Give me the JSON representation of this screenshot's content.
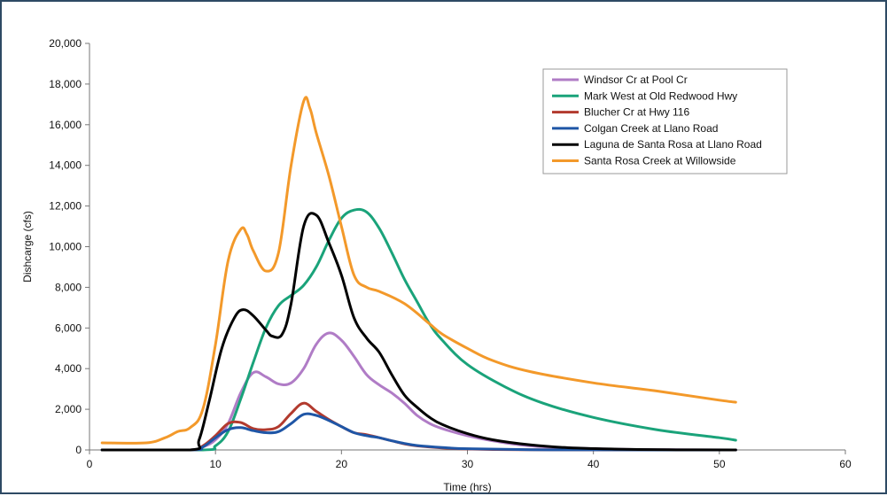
{
  "chart_data": {
    "type": "line",
    "title": "",
    "xlabel": "Time (hrs)",
    "ylabel": "Dishcarge (cfs)",
    "xlim": [
      0,
      60
    ],
    "ylim": [
      0,
      20000
    ],
    "x_ticks": [
      "0",
      "10",
      "20",
      "30",
      "40",
      "50",
      "60"
    ],
    "y_ticks": [
      "0",
      "2,000",
      "4,000",
      "6,000",
      "8,000",
      "10,000",
      "12,000",
      "14,000",
      "16,000",
      "18,000",
      "20,000"
    ],
    "grid": false,
    "legend_position": "top-right",
    "series": [
      {
        "name": "Windsor Cr at Pool Cr",
        "color": "#b07cc6",
        "points": [
          [
            1,
            0
          ],
          [
            8,
            0
          ],
          [
            9,
            150
          ],
          [
            10,
            500
          ],
          [
            11,
            1300
          ],
          [
            12,
            2800
          ],
          [
            13,
            3800
          ],
          [
            14,
            3600
          ],
          [
            15,
            3250
          ],
          [
            16,
            3300
          ],
          [
            17,
            4000
          ],
          [
            18,
            5200
          ],
          [
            19,
            5750
          ],
          [
            20,
            5400
          ],
          [
            21,
            4600
          ],
          [
            22,
            3700
          ],
          [
            23,
            3200
          ],
          [
            24,
            2800
          ],
          [
            25,
            2300
          ],
          [
            26,
            1700
          ],
          [
            27,
            1300
          ],
          [
            28,
            1050
          ],
          [
            30,
            700
          ],
          [
            32,
            450
          ],
          [
            35,
            200
          ],
          [
            40,
            60
          ],
          [
            45,
            15
          ],
          [
            51.3,
            0
          ]
        ]
      },
      {
        "name": "Mark West at Old Redwood Hwy",
        "color": "#1aa37a",
        "points": [
          [
            1,
            0
          ],
          [
            9,
            0
          ],
          [
            10,
            200
          ],
          [
            11,
            900
          ],
          [
            12,
            2500
          ],
          [
            13,
            4300
          ],
          [
            14,
            6000
          ],
          [
            15,
            7100
          ],
          [
            16,
            7600
          ],
          [
            17,
            8100
          ],
          [
            18,
            9000
          ],
          [
            19,
            10300
          ],
          [
            20,
            11400
          ],
          [
            21,
            11800
          ],
          [
            22,
            11700
          ],
          [
            23,
            10900
          ],
          [
            24,
            9700
          ],
          [
            25,
            8400
          ],
          [
            26,
            7300
          ],
          [
            27,
            6200
          ],
          [
            28,
            5400
          ],
          [
            30,
            4200
          ],
          [
            33,
            3100
          ],
          [
            36,
            2300
          ],
          [
            40,
            1600
          ],
          [
            45,
            1000
          ],
          [
            50,
            600
          ],
          [
            51.3,
            480
          ]
        ]
      },
      {
        "name": "Blucher Cr at Hwy 116",
        "color": "#b23a2e",
        "points": [
          [
            1,
            0
          ],
          [
            8,
            0
          ],
          [
            9,
            200
          ],
          [
            10,
            700
          ],
          [
            11,
            1300
          ],
          [
            12,
            1350
          ],
          [
            13,
            1050
          ],
          [
            14,
            1000
          ],
          [
            15,
            1150
          ],
          [
            16,
            1800
          ],
          [
            17,
            2300
          ],
          [
            18,
            1900
          ],
          [
            19,
            1500
          ],
          [
            20,
            1150
          ],
          [
            21,
            850
          ],
          [
            22,
            750
          ],
          [
            23,
            600
          ],
          [
            24,
            450
          ],
          [
            25,
            300
          ],
          [
            26,
            200
          ],
          [
            28,
            100
          ],
          [
            30,
            50
          ],
          [
            35,
            10
          ],
          [
            51.3,
            0
          ]
        ]
      },
      {
        "name": "Colgan Creek at Llano Road",
        "color": "#1f56a6",
        "points": [
          [
            1,
            0
          ],
          [
            8,
            0
          ],
          [
            9,
            150
          ],
          [
            10,
            600
          ],
          [
            11,
            1000
          ],
          [
            12,
            1100
          ],
          [
            13,
            950
          ],
          [
            14,
            850
          ],
          [
            15,
            900
          ],
          [
            16,
            1300
          ],
          [
            17,
            1750
          ],
          [
            18,
            1700
          ],
          [
            19,
            1450
          ],
          [
            20,
            1150
          ],
          [
            21,
            850
          ],
          [
            22,
            700
          ],
          [
            23,
            600
          ],
          [
            24,
            450
          ],
          [
            25,
            320
          ],
          [
            26,
            220
          ],
          [
            28,
            120
          ],
          [
            30,
            60
          ],
          [
            35,
            15
          ],
          [
            40,
            5
          ],
          [
            51.3,
            0
          ]
        ]
      },
      {
        "name": "Laguna de Santa Rosa at Llano Road",
        "color": "#000000",
        "points": [
          [
            1,
            0
          ],
          [
            8,
            0
          ],
          [
            8.7,
            500
          ],
          [
            9.5,
            2400
          ],
          [
            10.5,
            5000
          ],
          [
            11.5,
            6500
          ],
          [
            12.2,
            6900
          ],
          [
            13,
            6600
          ],
          [
            14,
            5900
          ],
          [
            14.5,
            5600
          ],
          [
            15.3,
            5700
          ],
          [
            16,
            7200
          ],
          [
            17,
            11000
          ],
          [
            18,
            11550
          ],
          [
            19,
            10200
          ],
          [
            20,
            8600
          ],
          [
            21,
            6500
          ],
          [
            22,
            5500
          ],
          [
            23,
            4800
          ],
          [
            24,
            3700
          ],
          [
            25,
            2700
          ],
          [
            26,
            2100
          ],
          [
            27,
            1600
          ],
          [
            28,
            1250
          ],
          [
            30,
            800
          ],
          [
            32,
            500
          ],
          [
            35,
            250
          ],
          [
            38,
            110
          ],
          [
            42,
            40
          ],
          [
            46,
            10
          ],
          [
            51.3,
            0
          ]
        ]
      },
      {
        "name": "Santa Rosa Creek at Willowside",
        "color": "#f3992a",
        "points": [
          [
            1,
            350
          ],
          [
            4.5,
            350
          ],
          [
            6,
            600
          ],
          [
            7,
            900
          ],
          [
            8,
            1100
          ],
          [
            9,
            2000
          ],
          [
            10,
            5200
          ],
          [
            11,
            9300
          ],
          [
            12,
            10850
          ],
          [
            12.5,
            10600
          ],
          [
            13,
            9800
          ],
          [
            14,
            8800
          ],
          [
            15,
            9700
          ],
          [
            16,
            14000
          ],
          [
            17,
            17150
          ],
          [
            17.5,
            16800
          ],
          [
            18,
            15600
          ],
          [
            19,
            13500
          ],
          [
            20,
            11000
          ],
          [
            21,
            8600
          ],
          [
            22,
            8000
          ],
          [
            23,
            7800
          ],
          [
            25,
            7200
          ],
          [
            27,
            6200
          ],
          [
            28,
            5700
          ],
          [
            30,
            5000
          ],
          [
            32,
            4400
          ],
          [
            35,
            3850
          ],
          [
            40,
            3300
          ],
          [
            45,
            2900
          ],
          [
            50,
            2450
          ],
          [
            51.3,
            2350
          ]
        ]
      }
    ]
  }
}
